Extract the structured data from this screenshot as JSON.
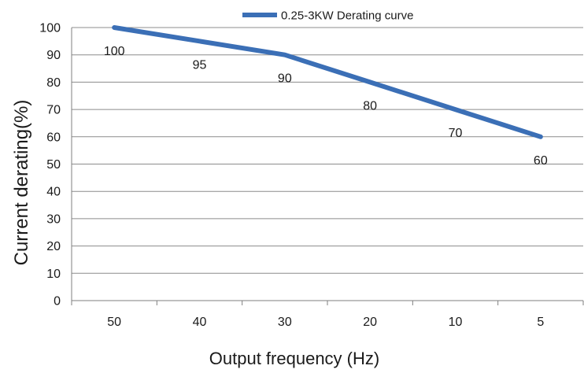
{
  "chart_data": {
    "type": "line",
    "title": "",
    "xlabel": "Output frequency (Hz)",
    "ylabel": "Current derating(%)",
    "categories": [
      "50",
      "40",
      "30",
      "20",
      "10",
      "5"
    ],
    "series": [
      {
        "name": "0.25-3KW Derating curve",
        "values": [
          100,
          95,
          90,
          80,
          70,
          60
        ]
      }
    ],
    "ylim": [
      0,
      100
    ],
    "yticks": [
      "0",
      "10",
      "20",
      "30",
      "40",
      "50",
      "60",
      "70",
      "80",
      "90",
      "100"
    ],
    "grid": true,
    "legend": "top-center",
    "colors": {
      "series": "#3b6fb6",
      "grid": "#8c8c8c",
      "axis": "#7f7f7f"
    }
  }
}
